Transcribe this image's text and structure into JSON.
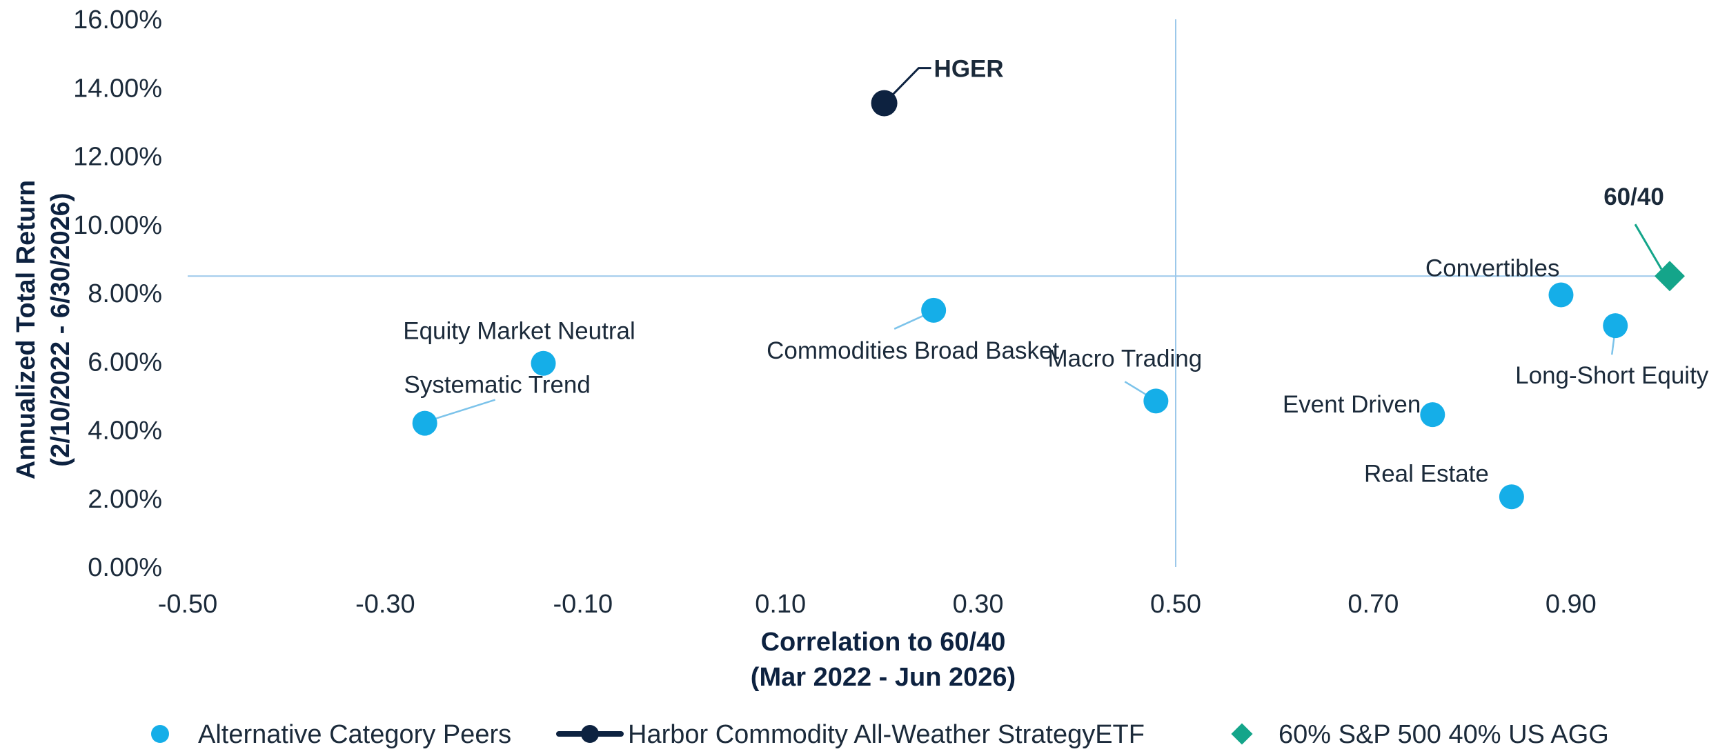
{
  "chart_data": {
    "type": "scatter",
    "xlabel": [
      "Correlation to 60/40",
      "(Mar 2022 - Jun 2026)"
    ],
    "ylabel": [
      "Annualized Total Return",
      "(2/10/2022 - 6/30/2026)"
    ],
    "xlim": [
      -0.5,
      1.0
    ],
    "ylim": [
      0,
      16
    ],
    "x_ticks": [
      "-0.50",
      "-0.30",
      "-0.10",
      "0.10",
      "0.30",
      "0.50",
      "0.70",
      "0.90"
    ],
    "y_ticks": [
      "0.00%",
      "2.00%",
      "4.00%",
      "6.00%",
      "8.00%",
      "10.00%",
      "12.00%",
      "14.00%",
      "16.00%"
    ],
    "reference_lines": {
      "x": 0.5,
      "y": 8.5
    },
    "grid": false,
    "legend_position": "bottom",
    "series": [
      {
        "name": "Alternative Category Peers",
        "color": "#15aee8",
        "marker": "circle",
        "points": [
          {
            "label": "Equity Market Neutral",
            "x": -0.14,
            "y": 5.95
          },
          {
            "label": "Systematic Trend",
            "x": -0.26,
            "y": 4.2
          },
          {
            "label": "Commodities Broad Basket",
            "x": 0.255,
            "y": 7.5
          },
          {
            "label": "Macro Trading",
            "x": 0.48,
            "y": 4.85
          },
          {
            "label": "Event Driven",
            "x": 0.76,
            "y": 4.45
          },
          {
            "label": "Real Estate",
            "x": 0.84,
            "y": 2.05
          },
          {
            "label": "Convertibles",
            "x": 0.89,
            "y": 7.95
          },
          {
            "label": "Long-Short Equity",
            "x": 0.945,
            "y": 7.05
          }
        ]
      },
      {
        "name": "Harbor Commodity All-Weather StrategyETF",
        "color": "#0d2240",
        "marker": "circle",
        "points": [
          {
            "label": "HGER",
            "x": 0.205,
            "y": 13.55
          }
        ]
      },
      {
        "name": "60% S&P 500 40% US AGG",
        "color": "#14a58a",
        "marker": "diamond",
        "points": [
          {
            "label": "60/40",
            "x": 1.0,
            "y": 8.5
          }
        ]
      }
    ]
  }
}
